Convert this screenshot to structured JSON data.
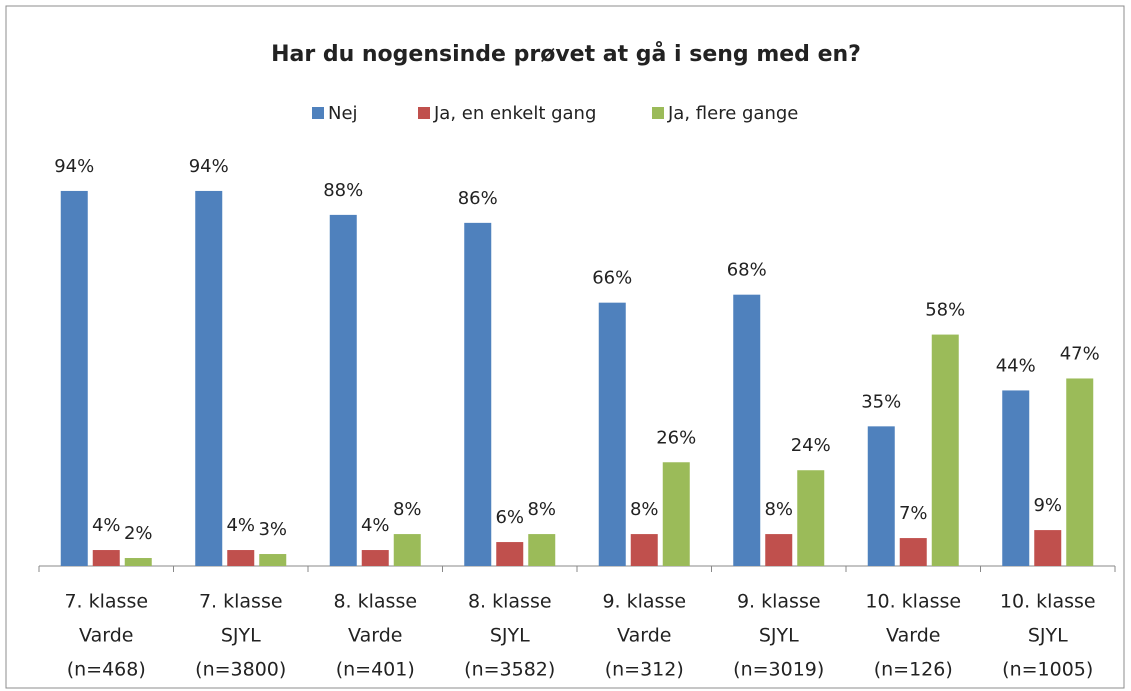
{
  "chart_data": {
    "type": "bar",
    "title": "Har du nogensinde prøvet at gå i seng med en?",
    "categories": [
      [
        "7. klasse",
        "Varde",
        "(n=468)"
      ],
      [
        "7. klasse",
        "SJYL",
        "(n=3800)"
      ],
      [
        "8. klasse",
        "Varde",
        "(n=401)"
      ],
      [
        "8. klasse",
        "SJYL",
        "(n=3582)"
      ],
      [
        "9. klasse",
        "Varde",
        "(n=312)"
      ],
      [
        "9. klasse",
        "SJYL",
        "(n=3019)"
      ],
      [
        "10. klasse",
        "Varde",
        "(n=126)"
      ],
      [
        "10. klasse",
        "SJYL",
        "(n=1005)"
      ]
    ],
    "series": [
      {
        "name": "Nej",
        "color": "#4f81bd",
        "values": [
          94,
          94,
          88,
          86,
          66,
          68,
          35,
          44
        ],
        "value_labels": [
          "94%",
          "94%",
          "88%",
          "86%",
          "66%",
          "68%",
          "35%",
          "44%"
        ]
      },
      {
        "name": "Ja, en enkelt gang",
        "color": "#c0504d",
        "values": [
          4,
          4,
          4,
          6,
          8,
          8,
          7,
          9
        ],
        "value_labels": [
          "4%",
          "4%",
          "4%",
          "6%",
          "8%",
          "8%",
          "7%",
          "9%"
        ]
      },
      {
        "name": "Ja, flere gange",
        "color": "#9bbb59",
        "values": [
          2,
          3,
          8,
          8,
          26,
          24,
          58,
          47
        ],
        "value_labels": [
          "2%",
          "3%",
          "8%",
          "8%",
          "26%",
          "24%",
          "58%",
          "47%"
        ]
      }
    ],
    "ylim": [
      0,
      100
    ],
    "legend": "top"
  }
}
